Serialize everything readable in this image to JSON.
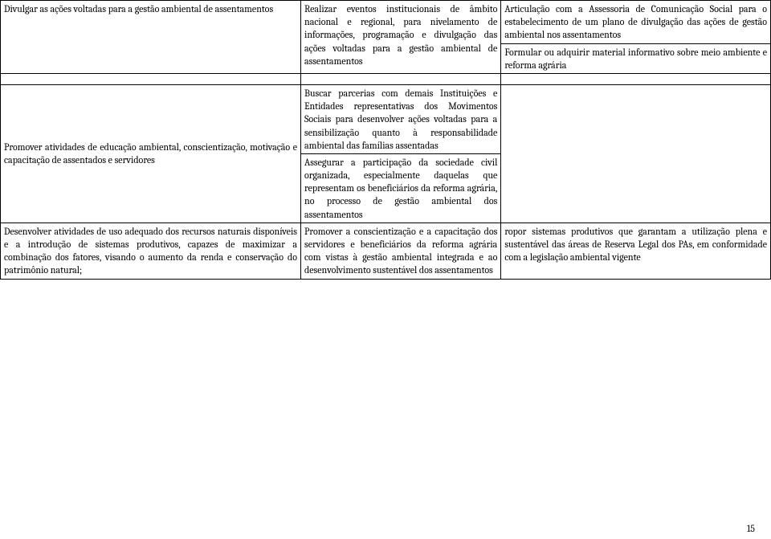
{
  "rows": [
    {
      "c1": "Divulgar as ações voltadas para a gestão ambiental de assentamentos",
      "c2": "Realizar eventos institucionais de âmbito nacional e regional, para nivelamento de informações, programação e divulgação das ações voltadas para a gestão ambiental de assentamentos",
      "c3": "Articulação com a Assessoria de Comunicação Social para o estabelecimento de um plano de divulgação das ações de gestão ambiental nos assentamentos"
    },
    {
      "c1": "",
      "c2": "",
      "c3": "Formular ou adquirir material informativo sobre meio ambiente e reforma agrária"
    },
    {
      "c1": "Promover atividades de educação ambiental, conscientização, motivação e capacitação de assentados e servidores",
      "c2": "Buscar parcerias com demais Instituições e Entidades representativas dos Movimentos Sociais para desenvolver ações voltadas para a sensibilização quanto à responsabilidade ambiental das famílias assentadas",
      "c3": ""
    },
    {
      "c1": "",
      "c2": "Assegurar a participação da sociedade civil organizada, especialmente daquelas que representam os beneficiários da reforma agrária, no processo de gestão ambiental dos assentamentos",
      "c3": ""
    },
    {
      "c1": "Desenvolver atividades de uso adequado dos recursos naturais disponíveis e a introdução de sistemas produtivos, capazes de maximizar a combinação dos fatores, visando o aumento da renda e conservação do patrimônio natural;",
      "c2": "Promover a conscientização e a capacitação dos servidores e beneficiários da reforma agrária com vistas à gestão ambiental integrada e ao desenvolvimento sustentável dos assentamentos",
      "c3": "ropor sistemas produtivos que garantam a utilização plena e sustentável das áreas de Reserva Legal dos PAs, em conformidade com a legislação ambiental vigente"
    }
  ],
  "pagenum": "15"
}
